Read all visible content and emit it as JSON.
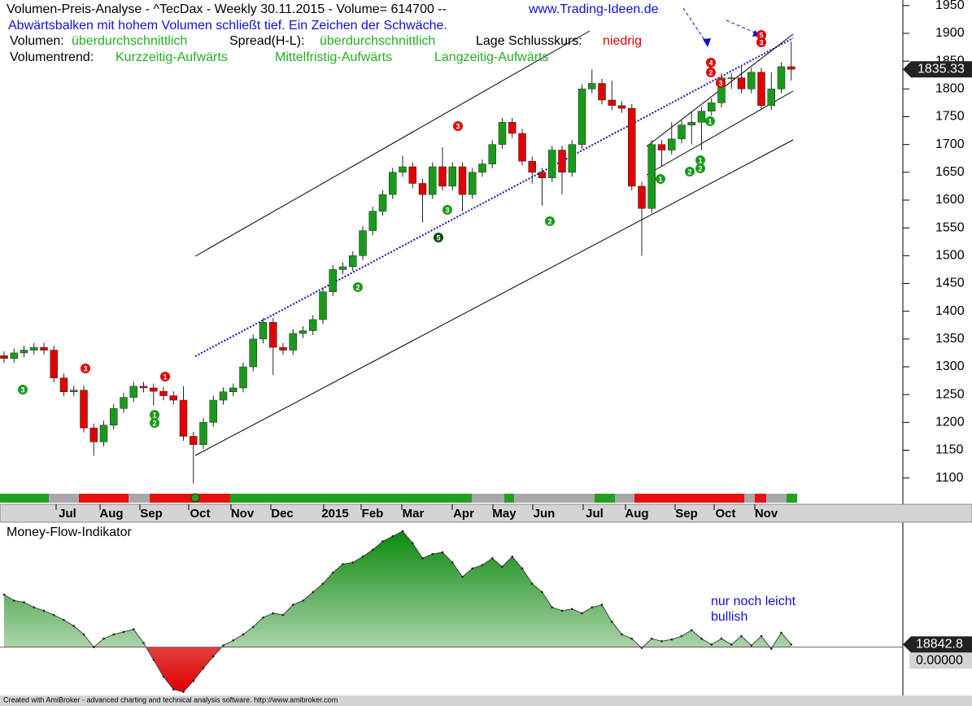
{
  "header": {
    "title": "Volumen-Preis-Analyse - ^TecDax - Weekly  30.11.2015 - Volume= 614700 --",
    "site": "www.Trading-Ideen.de",
    "message": "Abwärtsbalken mit hohem Volumen schließt tief. Ein Zeichen der Schwäche.",
    "volume_label": "Volumen:",
    "volume_value": "überdurchschnittlich",
    "spread_label": "Spread(H-L):",
    "spread_value": "überdurchschnittlich",
    "close_label": "Lage Schlusskurs:",
    "close_value": "niedrig",
    "trend_label": "Volumentrend:",
    "trend_short": "Kurzzeitig-Aufwärts",
    "trend_mid": "Mittelfristig-Aufwärts",
    "trend_long": "Langzeitig-Aufwärts"
  },
  "months": [
    "Jul",
    "Aug",
    "Sep",
    "Oct",
    "Nov",
    "Dec",
    "2015",
    "Feb",
    "Mar",
    "Apr",
    "May",
    "Jun",
    "Jul",
    "Aug",
    "Sep",
    "Oct",
    "Nov"
  ],
  "signals": [
    {
      "label": "3",
      "color": "#1a9a1a"
    },
    {
      "label": "3",
      "color": "#e00000"
    },
    {
      "label": "1",
      "color": "#1a9a1a"
    },
    {
      "label": "2",
      "color": "#1a9a1a"
    },
    {
      "label": "1",
      "color": "#e00000"
    },
    {
      "label": "2",
      "color": "#1a9a1a"
    },
    {
      "label": "3",
      "color": "#1a9a1a"
    },
    {
      "label": "5",
      "color": "#0a4a0a"
    },
    {
      "label": "3",
      "color": "#e00000"
    },
    {
      "label": "2",
      "color": "#1a9a1a"
    },
    {
      "label": "1",
      "color": "#1a9a1a"
    },
    {
      "label": "2",
      "color": "#1a9a1a"
    },
    {
      "label": "1",
      "color": "#1a9a1a"
    },
    {
      "label": "2",
      "color": "#1a9a1a"
    },
    {
      "label": "1",
      "color": "#1a9a1a"
    },
    {
      "label": "4",
      "color": "#e00000"
    },
    {
      "label": "2",
      "color": "#e00000"
    },
    {
      "label": "3",
      "color": "#e00000"
    },
    {
      "label": "5",
      "color": "#e00000"
    },
    {
      "label": "3",
      "color": "#e00000"
    }
  ],
  "chart_data": [
    {
      "type": "candlestick",
      "up_color": "#1a9a1a",
      "down_color": "#e00000",
      "open": [
        1320,
        1315,
        1325,
        1330,
        1335,
        1330,
        1280,
        1255,
        1258,
        1190,
        1165,
        1195,
        1225,
        1245,
        1265,
        1262,
        1256,
        1248,
        1240,
        1175,
        1160,
        1200,
        1240,
        1255,
        1262,
        1300,
        1350,
        1380,
        1335,
        1330,
        1360,
        1365,
        1385,
        1435,
        1475,
        1480,
        1500,
        1545,
        1580,
        1610,
        1650,
        1660,
        1630,
        1610,
        1660,
        1625,
        1660,
        1610,
        1650,
        1665,
        1700,
        1740,
        1720,
        1670,
        1650,
        1640,
        1690,
        1650,
        1700,
        1800,
        1810,
        1780,
        1770,
        1765,
        1625,
        1585,
        1700,
        1690,
        1710,
        1735,
        1740,
        1760,
        1775,
        1820,
        1820,
        1800,
        1830,
        1770,
        1800,
        1840
      ],
      "high": [
        1328,
        1333,
        1338,
        1343,
        1343,
        1338,
        1288,
        1266,
        1266,
        1198,
        1203,
        1233,
        1253,
        1273,
        1273,
        1270,
        1264,
        1256,
        1265,
        1183,
        1208,
        1248,
        1263,
        1270,
        1308,
        1358,
        1388,
        1388,
        1343,
        1368,
        1373,
        1393,
        1443,
        1483,
        1488,
        1508,
        1553,
        1588,
        1618,
        1658,
        1680,
        1668,
        1638,
        1668,
        1695,
        1668,
        1668,
        1658,
        1673,
        1708,
        1748,
        1748,
        1728,
        1678,
        1658,
        1698,
        1698,
        1708,
        1808,
        1835,
        1818,
        1815,
        1778,
        1773,
        1633,
        1708,
        1708,
        1740,
        1743,
        1760,
        1768,
        1783,
        1828,
        1828,
        1840,
        1838,
        1838,
        1830,
        1848,
        1885
      ],
      "low": [
        1307,
        1307,
        1317,
        1322,
        1322,
        1272,
        1247,
        1247,
        1182,
        1140,
        1157,
        1187,
        1217,
        1237,
        1254,
        1230,
        1240,
        1232,
        1167,
        1090,
        1152,
        1192,
        1232,
        1247,
        1254,
        1292,
        1342,
        1285,
        1322,
        1322,
        1352,
        1357,
        1377,
        1427,
        1467,
        1472,
        1492,
        1537,
        1572,
        1602,
        1642,
        1622,
        1560,
        1602,
        1617,
        1617,
        1580,
        1602,
        1642,
        1657,
        1692,
        1712,
        1662,
        1630,
        1590,
        1632,
        1610,
        1642,
        1692,
        1792,
        1772,
        1762,
        1757,
        1617,
        1500,
        1577,
        1660,
        1682,
        1702,
        1700,
        1690,
        1752,
        1767,
        1800,
        1792,
        1792,
        1762,
        1762,
        1792,
        1815
      ],
      "close": [
        1315,
        1325,
        1330,
        1335,
        1330,
        1280,
        1255,
        1258,
        1190,
        1165,
        1195,
        1225,
        1245,
        1265,
        1262,
        1256,
        1248,
        1240,
        1175,
        1160,
        1200,
        1240,
        1255,
        1262,
        1300,
        1350,
        1380,
        1335,
        1330,
        1360,
        1365,
        1385,
        1435,
        1475,
        1480,
        1500,
        1545,
        1580,
        1610,
        1650,
        1660,
        1630,
        1610,
        1660,
        1625,
        1660,
        1610,
        1650,
        1665,
        1700,
        1740,
        1720,
        1670,
        1650,
        1640,
        1690,
        1650,
        1700,
        1800,
        1810,
        1780,
        1770,
        1765,
        1625,
        1585,
        1700,
        1690,
        1710,
        1735,
        1740,
        1760,
        1775,
        1820,
        1820,
        1800,
        1830,
        1770,
        1800,
        1840,
        1835.33
      ],
      "ylim": [
        1060,
        1960
      ],
      "yticks": [
        1100,
        1150,
        1200,
        1250,
        1300,
        1350,
        1400,
        1450,
        1500,
        1550,
        1600,
        1650,
        1700,
        1750,
        1800,
        1850,
        1900,
        1950
      ]
    },
    {
      "type": "area",
      "title": "Money-Flow-Indikator",
      "annotation": [
        "nur noch leicht",
        "bullish"
      ],
      "zero_label": "0.00000",
      "color": "#1a9a1a",
      "negative_color": "#e00000",
      "values": [
        372000,
        330000,
        318000,
        282000,
        258000,
        228000,
        192000,
        150000,
        90000,
        0,
        60000,
        90000,
        108000,
        126000,
        30000,
        -90000,
        -210000,
        -300000,
        -318000,
        -240000,
        -150000,
        -66000,
        12000,
        48000,
        90000,
        144000,
        210000,
        240000,
        228000,
        300000,
        330000,
        390000,
        450000,
        528000,
        588000,
        600000,
        642000,
        690000,
        750000,
        786000,
        822000,
        738000,
        630000,
        660000,
        672000,
        600000,
        498000,
        558000,
        582000,
        630000,
        570000,
        642000,
        558000,
        450000,
        390000,
        282000,
        258000,
        270000,
        240000,
        282000,
        300000,
        180000,
        90000,
        60000,
        -6000,
        60000,
        42000,
        54000,
        78000,
        120000,
        60000,
        18000,
        60000,
        18000,
        78000,
        12000,
        78000,
        -12000,
        102000,
        18842.8
      ],
      "ylim": [
        -360000,
        880000
      ]
    }
  ],
  "footer": "Created with AmiBroker - advanced charting and technical analysis software. http://www.amibroker.com"
}
